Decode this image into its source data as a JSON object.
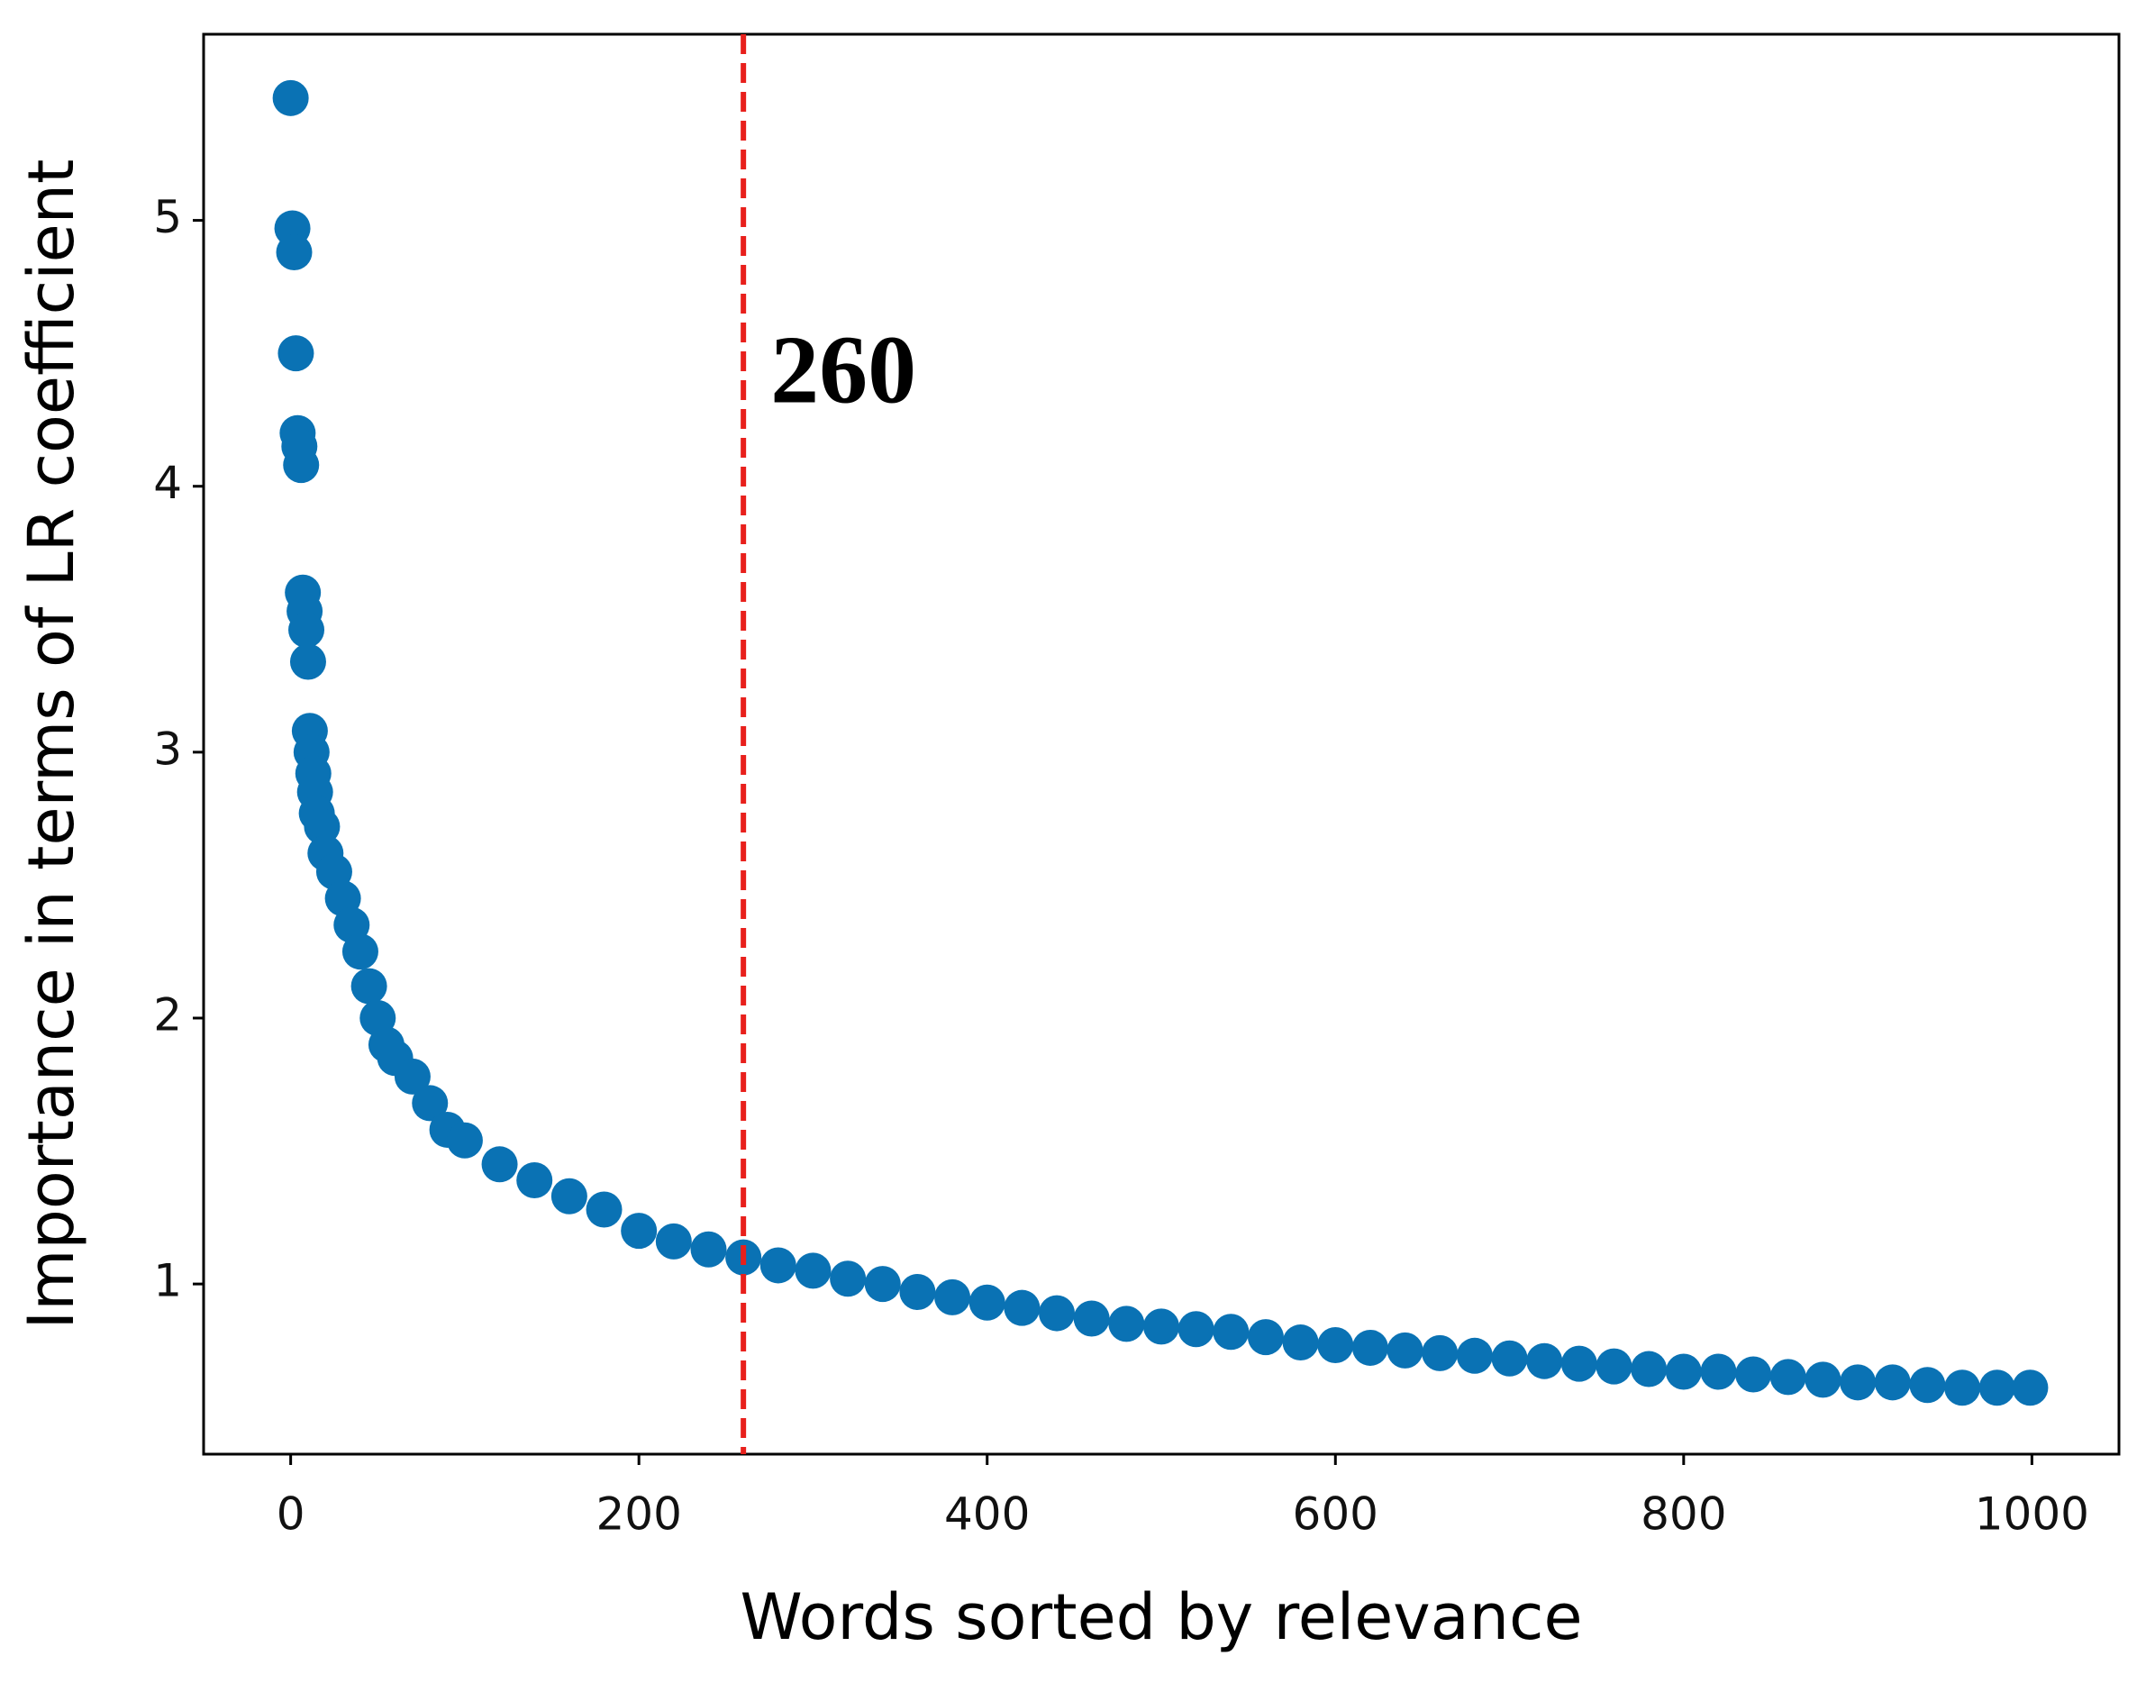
{
  "chart_data": {
    "type": "scatter",
    "x_label": "Words sorted by relevance",
    "y_label": "Importance in terms of LR coefficient",
    "series": [
      {
        "color": "#0a72b4",
        "x": [
          0,
          1,
          2,
          3,
          4,
          5,
          6,
          7,
          8,
          9,
          10,
          11,
          12,
          13,
          14,
          15,
          18,
          20,
          25,
          30,
          35,
          40,
          45,
          50,
          55,
          60,
          70,
          80,
          90,
          100,
          120,
          140,
          160,
          180,
          200,
          220,
          240,
          260,
          280,
          300,
          320,
          340,
          360,
          380,
          400,
          420,
          440,
          460,
          480,
          500,
          520,
          540,
          560,
          580,
          600,
          620,
          640,
          660,
          680,
          700,
          720,
          740,
          760,
          780,
          800,
          820,
          840,
          860,
          880,
          900,
          920,
          940,
          960,
          980,
          999
        ],
        "values": [
          5.46,
          4.97,
          4.88,
          4.5,
          4.2,
          4.15,
          4.08,
          3.6,
          3.53,
          3.46,
          3.34,
          3.08,
          3.0,
          2.92,
          2.85,
          2.77,
          2.72,
          2.62,
          2.55,
          2.45,
          2.35,
          2.25,
          2.12,
          2.0,
          1.9,
          1.85,
          1.78,
          1.68,
          1.58,
          1.54,
          1.45,
          1.39,
          1.33,
          1.28,
          1.2,
          1.16,
          1.13,
          1.1,
          1.07,
          1.05,
          1.02,
          1.0,
          0.97,
          0.95,
          0.93,
          0.91,
          0.89,
          0.87,
          0.85,
          0.84,
          0.83,
          0.82,
          0.8,
          0.78,
          0.77,
          0.76,
          0.75,
          0.74,
          0.73,
          0.72,
          0.71,
          0.7,
          0.69,
          0.68,
          0.67,
          0.67,
          0.66,
          0.65,
          0.64,
          0.63,
          0.63,
          0.62,
          0.61,
          0.61,
          0.61
        ]
      }
    ],
    "vline": {
      "x": 260,
      "color": "#e8201c",
      "label": "260"
    },
    "xlim": [
      -50,
      1050
    ],
    "xticks": [
      0,
      200,
      400,
      600,
      800,
      1000
    ],
    "ylim": [
      0.36,
      5.7
    ],
    "yticks": [
      1,
      2,
      3,
      4,
      5
    ]
  }
}
